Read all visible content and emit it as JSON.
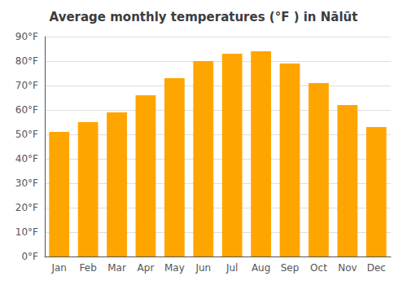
{
  "chart_data": {
    "type": "bar",
    "title": "Average monthly temperatures (°F ) in Nālūt",
    "categories": [
      "Jan",
      "Feb",
      "Mar",
      "Apr",
      "May",
      "Jun",
      "Jul",
      "Aug",
      "Sep",
      "Oct",
      "Nov",
      "Dec"
    ],
    "values": [
      51,
      55,
      59,
      66,
      73,
      80,
      83,
      84,
      79,
      71,
      62,
      53
    ],
    "color": "#FFA500",
    "ylim": [
      0,
      90
    ],
    "yticks": [
      {
        "value": 0,
        "label": "0°F"
      },
      {
        "value": 10,
        "label": "10°F"
      },
      {
        "value": 20,
        "label": "20°F"
      },
      {
        "value": 30,
        "label": "30°F"
      },
      {
        "value": 40,
        "label": "40°F"
      },
      {
        "value": 50,
        "label": "50°F"
      },
      {
        "value": 60,
        "label": "60°F"
      },
      {
        "value": 70,
        "label": "70°F"
      },
      {
        "value": 80,
        "label": "80°F"
      },
      {
        "value": 90,
        "label": "90°F"
      }
    ],
    "grid": true
  }
}
